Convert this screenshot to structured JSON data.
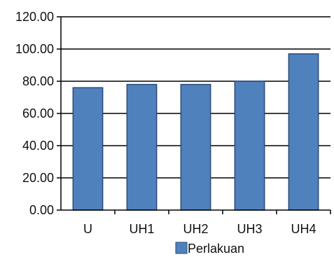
{
  "chart_data": {
    "type": "bar",
    "categories": [
      "U",
      "UH1",
      "UH2",
      "UH3",
      "UH4"
    ],
    "series": [
      {
        "name": "Perlakuan",
        "values": [
          76,
          78,
          78,
          80,
          97
        ]
      }
    ],
    "title": "",
    "xlabel": "",
    "ylabel": "",
    "ylim": [
      0,
      120
    ],
    "y_ticks": [
      0,
      20,
      40,
      60,
      80,
      100,
      120
    ],
    "y_tick_labels": [
      "0.00",
      "20.00",
      "40.00",
      "60.00",
      "80.00",
      "100.00",
      "120.00"
    ],
    "grid": true,
    "legend_position": "bottom",
    "colors": {
      "bar_fill": "#4f81bd",
      "bar_stroke": "#2a4a7a",
      "grid": "#000000",
      "axis": "#000000"
    }
  }
}
